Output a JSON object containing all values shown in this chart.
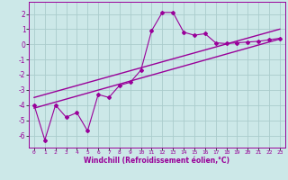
{
  "title": "",
  "xlabel": "Windchill (Refroidissement éolien,°C)",
  "ylabel": "",
  "background_color": "#cce8e8",
  "line_color": "#990099",
  "grid_color": "#aacccc",
  "xlim": [
    -0.5,
    23.5
  ],
  "ylim": [
    -6.8,
    2.8
  ],
  "xticks": [
    0,
    1,
    2,
    3,
    4,
    5,
    6,
    7,
    8,
    9,
    10,
    11,
    12,
    13,
    14,
    15,
    16,
    17,
    18,
    19,
    20,
    21,
    22,
    23
  ],
  "yticks": [
    -6,
    -5,
    -4,
    -3,
    -2,
    -1,
    0,
    1,
    2
  ],
  "data_x": [
    0,
    1,
    2,
    3,
    4,
    5,
    6,
    7,
    8,
    9,
    10,
    11,
    12,
    13,
    14,
    15,
    16,
    17,
    18,
    19,
    20,
    21,
    22,
    23
  ],
  "data_y": [
    -4.0,
    -6.3,
    -4.0,
    -4.8,
    -4.5,
    -5.7,
    -3.3,
    -3.5,
    -2.7,
    -2.5,
    -1.7,
    0.9,
    2.1,
    2.1,
    0.8,
    0.6,
    0.7,
    0.1,
    0.05,
    0.1,
    0.15,
    0.2,
    0.3,
    0.4
  ],
  "trend1_x": [
    0,
    23
  ],
  "trend1_y": [
    -4.2,
    0.35
  ],
  "trend2_x": [
    0,
    23
  ],
  "trend2_y": [
    -3.5,
    1.0
  ]
}
